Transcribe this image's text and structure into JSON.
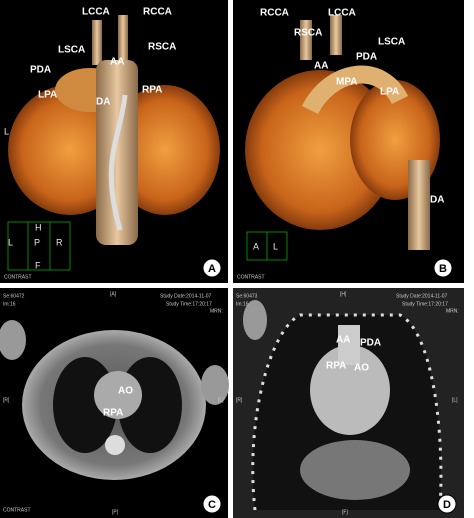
{
  "panels": [
    {
      "letter": "A",
      "labels": [
        "LCCA",
        "RCCA",
        "LSCA",
        "RSCA",
        "PDA",
        "AA",
        "LPA",
        "DA",
        "RPA",
        "L"
      ],
      "orientation": [
        "H",
        "L",
        "P",
        "R",
        "F"
      ],
      "footer": "CONTRAST"
    },
    {
      "letter": "B",
      "labels": [
        "RCCA",
        "LCCA",
        "RSCA",
        "PDA",
        "LSCA",
        "AA",
        "MPA",
        "LPA",
        "DA"
      ],
      "orientation": [
        "A",
        "L"
      ],
      "footer": "CONTRAST"
    },
    {
      "letter": "C",
      "labels": [
        "AO",
        "RPA"
      ],
      "header": [
        "Se:60472",
        "Im:16",
        "[A]",
        "Study Date:2014-11-07",
        "Study Time:17:20:17",
        "MRN:"
      ],
      "sides": [
        "[R]",
        "[L]",
        "[P]"
      ],
      "footer": "CONTRAST"
    },
    {
      "letter": "D",
      "labels": [
        "AA",
        "PDA",
        "RPA",
        "AO"
      ],
      "header": [
        "Se:60473",
        "Im:16",
        "[H]",
        "Study Date:2014-11-07",
        "Study Time:17:20:17",
        "MRN:"
      ],
      "sides": [
        "[R]",
        "[L]",
        "[F]"
      ]
    }
  ]
}
